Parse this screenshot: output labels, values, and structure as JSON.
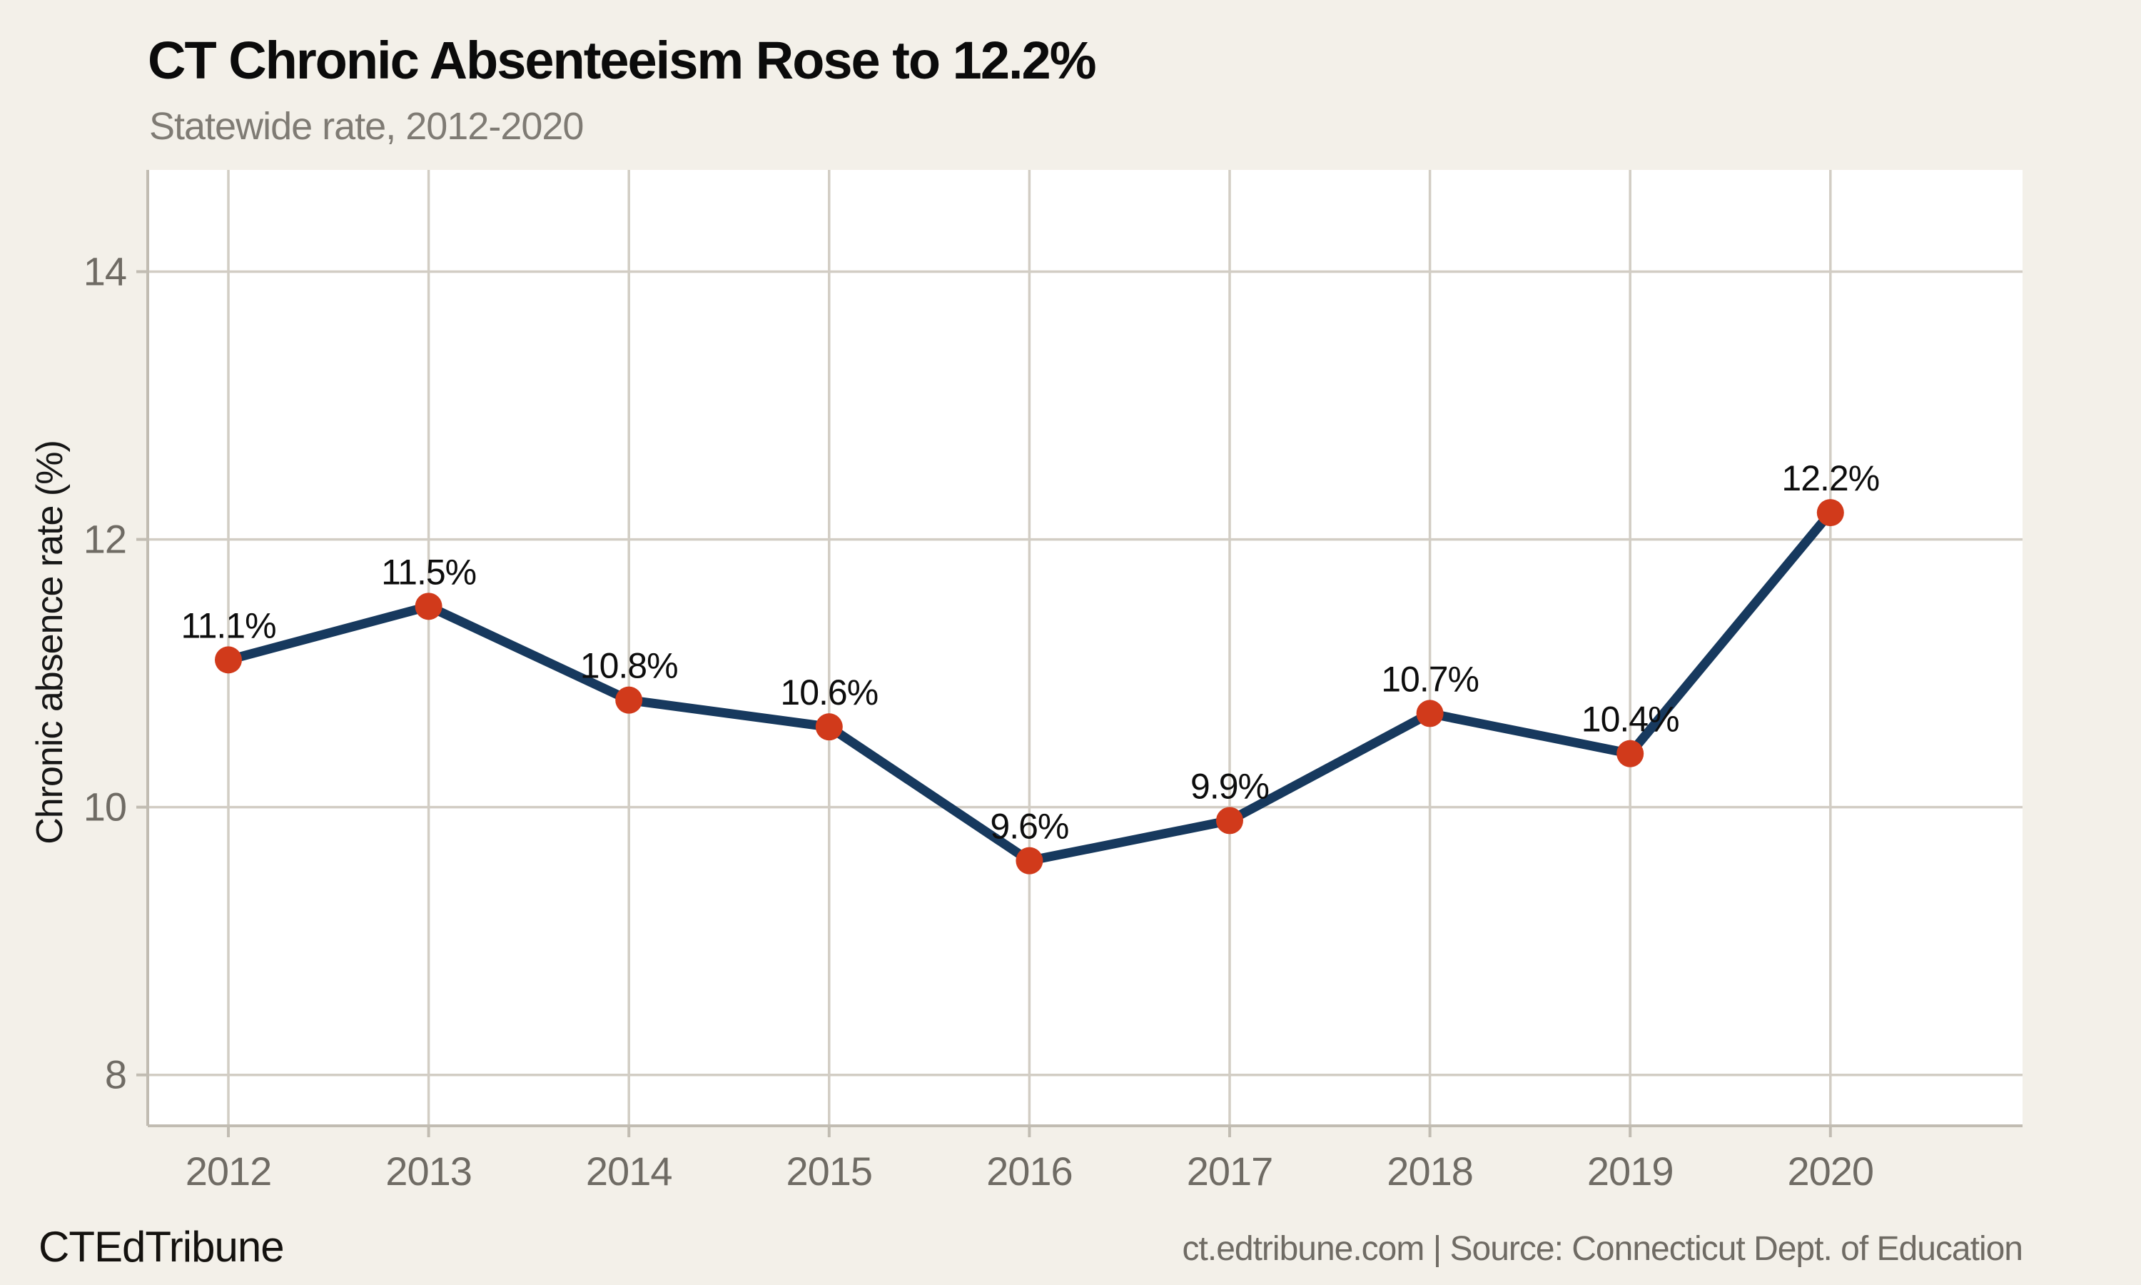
{
  "header": {
    "title": "CT Chronic Absenteeism Rose to 12.2%",
    "subtitle": "Statewide rate, 2012-2020"
  },
  "footer": {
    "brand": "CTEdTribune",
    "source": "ct.edtribune.com | Source: Connecticut Dept. of Education"
  },
  "chart_data": {
    "type": "line",
    "title": "CT Chronic Absenteeism Rose to 12.2%",
    "subtitle": "Statewide rate, 2012-2020",
    "x": [
      "2012",
      "2013",
      "2014",
      "2015",
      "2016",
      "2017",
      "2018",
      "2019",
      "2020"
    ],
    "values": [
      11.1,
      11.5,
      10.8,
      10.6,
      9.6,
      9.9,
      10.7,
      10.4,
      12.2
    ],
    "point_labels": [
      "11.1%",
      "11.5%",
      "10.8%",
      "10.6%",
      "9.6%",
      "9.9%",
      "10.7%",
      "10.4%",
      "12.2%"
    ],
    "xlabel": "",
    "ylabel": "Chronic absence rate (%)",
    "y_ticks": [
      8,
      10,
      12,
      14
    ],
    "ylim": [
      7.62,
      14.76
    ],
    "grid": true,
    "legend": false,
    "colors": {
      "line": "#17395e",
      "marker": "#d13a1b",
      "page_bg": "#f3f0e9",
      "plot_bg": "#ffffff",
      "grid": "#d2cdc4",
      "axis": "#c1bcb2",
      "tick_label": "#6f6b64",
      "point_label": "#0d0d0d"
    }
  }
}
